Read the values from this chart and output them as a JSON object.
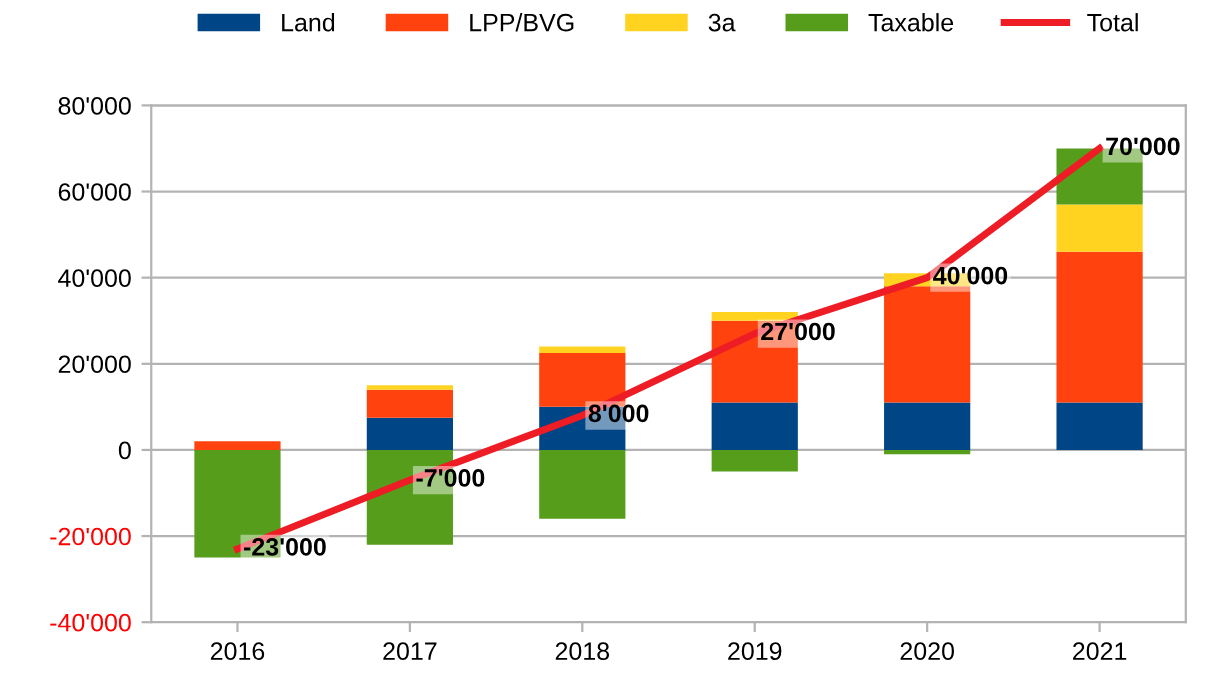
{
  "chart_data": {
    "type": "bar",
    "stacked": true,
    "categories": [
      "2016",
      "2017",
      "2018",
      "2019",
      "2020",
      "2021"
    ],
    "series": [
      {
        "name": "Land",
        "color": "#004586",
        "values": [
          0,
          7500,
          10000,
          11000,
          11000,
          11000
        ]
      },
      {
        "name": "LPP/BVG",
        "color": "#ff420e",
        "values": [
          2000,
          6500,
          12500,
          19000,
          27000,
          35000
        ]
      },
      {
        "name": "3a",
        "color": "#ffd320",
        "values": [
          0,
          1000,
          1500,
          2000,
          3000,
          11000
        ]
      },
      {
        "name": "Taxable",
        "color": "#579d1c",
        "values": [
          -25000,
          -22000,
          -16000,
          -5000,
          -1000,
          13000
        ]
      },
      {
        "name": "Total",
        "type": "line",
        "color": "#ee1c25",
        "values": [
          -23000,
          -7000,
          8000,
          27000,
          40000,
          70000
        ],
        "value_labels": [
          "-23'000",
          "-7'000",
          "8'000",
          "27'000",
          "40'000",
          "70'000"
        ]
      }
    ],
    "ylim": [
      -40000,
      80000
    ],
    "yticks": [
      {
        "value": -40000,
        "label": "-40'000"
      },
      {
        "value": -20000,
        "label": "-20'000"
      },
      {
        "value": 0,
        "label": "0"
      },
      {
        "value": 20000,
        "label": "20'000"
      },
      {
        "value": 40000,
        "label": "40'000"
      },
      {
        "value": 60000,
        "label": "60'000"
      },
      {
        "value": 80000,
        "label": "80'000"
      }
    ],
    "grid": "y",
    "legend": "top"
  }
}
